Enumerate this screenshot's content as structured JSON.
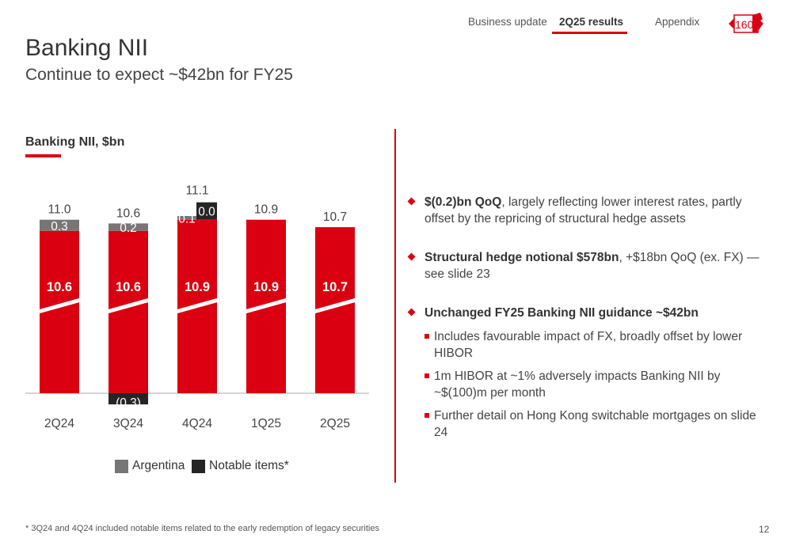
{
  "nav": {
    "tabs": [
      "Business update",
      "2Q25 results",
      "Appendix"
    ],
    "active_index": 1,
    "logo_text": "160"
  },
  "header": {
    "title": "Banking NII",
    "subtitle": "Continue to expect ~$42bn for FY25"
  },
  "chart_title": "Banking NII, $bn",
  "chart_data": {
    "type": "bar",
    "stacked": true,
    "axis_break": true,
    "categories": [
      "2Q24",
      "3Q24",
      "4Q24",
      "1Q25",
      "2Q25"
    ],
    "series": [
      {
        "key": "base",
        "values": [
          10.6,
          10.6,
          10.9,
          10.9,
          10.7
        ],
        "labels": [
          "10.6",
          "10.6",
          "10.9",
          "10.9",
          "10.7"
        ],
        "color": "#db0011"
      },
      {
        "name": "Argentina",
        "values": [
          0.3,
          0.2,
          0.1,
          null,
          null
        ],
        "labels": [
          "0.3",
          "0.2",
          "0.1",
          "",
          ""
        ],
        "color": "#767676"
      },
      {
        "name": "Notable items*",
        "values": [
          null,
          -0.3,
          0.0,
          null,
          null
        ],
        "labels": [
          "",
          "(0.3)",
          "0.0",
          "",
          ""
        ],
        "color": "#252525"
      }
    ],
    "totals": [
      "11.0",
      "10.6",
      "11.1",
      "10.9",
      "10.7"
    ]
  },
  "legend": [
    {
      "label": "Argentina",
      "color": "#767676"
    },
    {
      "label": "Notable items*",
      "color": "#252525"
    }
  ],
  "bullets": [
    {
      "bold": "$(0.2)bn QoQ",
      "text": ", largely reflecting lower interest rates, partly offset by the repricing of structural hedge assets"
    },
    {
      "bold": "Structural hedge notional $578bn",
      "text": ", +$18bn QoQ (ex. FX) — see slide 23"
    },
    {
      "bold": "Unchanged FY25 Banking NII guidance ~$42bn",
      "text": ""
    }
  ],
  "sub_bullets": [
    "Includes favourable impact of FX, broadly offset by lower HIBOR",
    "1m HIBOR at ~1% adversely impacts Banking NII by ~$(100)m per month",
    "Further detail on Hong Kong switchable mortgages on slide 24"
  ],
  "footnote": "* 3Q24 and 4Q24 included notable items related to the early redemption of legacy securities",
  "page_number": "12",
  "colors": {
    "accent": "#db0011",
    "argentina": "#767676",
    "notable": "#252525"
  }
}
